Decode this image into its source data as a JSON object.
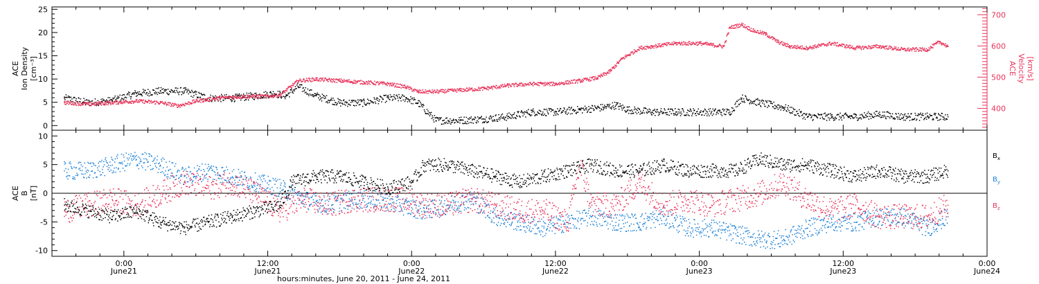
{
  "chart_data": [
    {
      "type": "scatter",
      "panel": "top",
      "ylabel_left": [
        "ACE",
        "Ion Density",
        "[cm⁻³]"
      ],
      "ylabel_right": [
        "ACE",
        "Velocity",
        "[km/s]"
      ],
      "ylim_left": [
        -1,
        25.5
      ],
      "ylim_right": [
        330,
        725
      ],
      "yticks_left": [
        0,
        5,
        10,
        15,
        20,
        25
      ],
      "yticks_right": [
        400,
        500,
        600,
        700
      ],
      "grid": false,
      "series": [
        {
          "name": "",
          "axis": "left",
          "color": "#000000",
          "x_hours": [
            -5,
            -3,
            -1,
            1,
            3,
            5,
            7,
            9,
            11,
            12.5,
            13.5,
            14.5,
            16,
            18,
            20,
            22,
            23.5,
            24.5,
            26,
            28,
            30,
            32,
            34,
            36,
            38,
            40,
            41,
            42,
            44,
            46,
            48,
            50.5,
            51.5,
            53,
            55,
            57,
            59,
            61,
            63,
            65,
            67,
            68.7
          ],
          "values": [
            6,
            5,
            5.5,
            7,
            7.5,
            7.5,
            6,
            6,
            6.5,
            7,
            6.5,
            8.5,
            6.5,
            5,
            5,
            6,
            6,
            5,
            1.2,
            1.2,
            1.5,
            2,
            3,
            3,
            3.5,
            4,
            4.5,
            3.5,
            3,
            3,
            3,
            3,
            6,
            5,
            4,
            2,
            2,
            2,
            2.5,
            2,
            2,
            2
          ]
        },
        {
          "name": "",
          "axis": "right",
          "color": "#e8335a",
          "x_hours": [
            -5,
            -3,
            -1,
            1,
            3,
            4.5,
            6,
            8,
            10,
            12,
            13,
            14.5,
            16,
            18,
            20,
            22,
            23.5,
            24.5,
            26,
            28,
            30,
            32,
            34,
            36,
            38,
            39.5,
            40.5,
            41.5,
            43,
            44,
            46,
            48,
            50,
            50.5,
            51.5,
            52.5,
            53.5,
            54.5,
            55.5,
            57,
            59,
            61,
            63,
            65,
            67,
            68,
            68.7
          ],
          "values": [
            420,
            415,
            420,
            425,
            420,
            410,
            425,
            435,
            440,
            440,
            445,
            490,
            495,
            490,
            485,
            480,
            470,
            455,
            455,
            460,
            465,
            475,
            480,
            480,
            490,
            500,
            520,
            560,
            595,
            600,
            610,
            610,
            600,
            660,
            670,
            650,
            640,
            615,
            600,
            595,
            610,
            595,
            600,
            590,
            590,
            615,
            600
          ]
        }
      ]
    },
    {
      "type": "scatter",
      "panel": "bottom",
      "ylabel": [
        "ACE",
        "B",
        "[nT]"
      ],
      "ylim": [
        -11,
        11
      ],
      "yticks": [
        -10,
        -5,
        0,
        5,
        10
      ],
      "zero_line": true,
      "grid": false,
      "series": [
        {
          "name": "Bx",
          "color": "#000000",
          "x_hours": [
            -5,
            -3,
            -1,
            1,
            3,
            5,
            7,
            9,
            11,
            13,
            14,
            16,
            18,
            20,
            22,
            24,
            25,
            27,
            29,
            31,
            33,
            35,
            37,
            39,
            41,
            43,
            45,
            47,
            49,
            51,
            53,
            55,
            57,
            59,
            61,
            63,
            65,
            67,
            68.7
          ],
          "values": [
            -2,
            -3,
            -4,
            -3,
            -5,
            -6,
            -5,
            -4,
            -3,
            -2,
            2,
            3,
            3,
            2,
            1,
            2,
            5,
            5,
            4,
            3,
            2,
            3,
            4,
            5,
            4,
            4,
            5,
            4,
            4,
            4,
            6,
            5,
            5,
            4,
            3,
            4,
            3,
            3,
            4
          ]
        },
        {
          "name": "By",
          "color": "#1a7fd6",
          "x_hours": [
            -5,
            -3,
            -1,
            1,
            3,
            5,
            7,
            9,
            11,
            13,
            15,
            17,
            19,
            21,
            23,
            25,
            27,
            29,
            31,
            33,
            35,
            37,
            39,
            41,
            43,
            45,
            47,
            49,
            51,
            53,
            55,
            57,
            59,
            61,
            63,
            65,
            67,
            68.7
          ],
          "values": [
            4,
            4,
            5,
            6,
            5,
            3,
            4,
            3,
            2,
            1,
            -1,
            -2,
            -1,
            -1,
            -2,
            -3,
            -2,
            -1,
            -4,
            -5,
            -6,
            -5,
            -4,
            -5,
            -5,
            -4,
            -6,
            -6,
            -7,
            -8,
            -8,
            -6,
            -5,
            -5,
            -4,
            -4,
            -6,
            -4
          ]
        },
        {
          "name": "Bz",
          "color": "#e8335a",
          "x_hours": [
            -5,
            -3,
            -1,
            1,
            3,
            5,
            7,
            9,
            11,
            13,
            15,
            17,
            19,
            21,
            23,
            25,
            27,
            29,
            31,
            33,
            35,
            37,
            38,
            39,
            41,
            43,
            45,
            47,
            49,
            51,
            53,
            55,
            57,
            59,
            61,
            63,
            65,
            67,
            68.7
          ],
          "values": [
            -3,
            -2,
            -1,
            -2,
            0,
            2,
            1,
            2,
            0,
            -3,
            -1,
            -2,
            -1,
            -1,
            -1,
            -2,
            -2,
            -1,
            -2,
            -3,
            -3,
            -5,
            5,
            -2,
            -2,
            2,
            -2,
            -1,
            -2,
            -1,
            0,
            2,
            -1,
            -3,
            -2,
            -4,
            -4,
            -4,
            -2
          ]
        }
      ]
    }
  ],
  "legend": {
    "bx": {
      "base": "B",
      "sub": "x"
    },
    "by": {
      "base": "B",
      "sub": "y"
    },
    "bz": {
      "base": "B",
      "sub": "z"
    }
  },
  "x_axis": {
    "range_hours": [
      -6,
      72
    ],
    "ticks": [
      {
        "h": 0,
        "time": "0:00",
        "date": "June21"
      },
      {
        "h": 12,
        "time": "12:00",
        "date": "June21"
      },
      {
        "h": 24,
        "time": "0:00",
        "date": "June22"
      },
      {
        "h": 36,
        "time": "12:00",
        "date": "June22"
      },
      {
        "h": 48,
        "time": "0:00",
        "date": "June23"
      },
      {
        "h": 60,
        "time": "12:00",
        "date": "June23"
      },
      {
        "h": 72,
        "time": "0:00",
        "date": "June24"
      }
    ],
    "label": "hours:minutes, June 20, 2011 - June 24, 2011"
  },
  "colors": {
    "black": "#000000",
    "pink": "#e8335a",
    "blue": "#1a7fd6"
  }
}
